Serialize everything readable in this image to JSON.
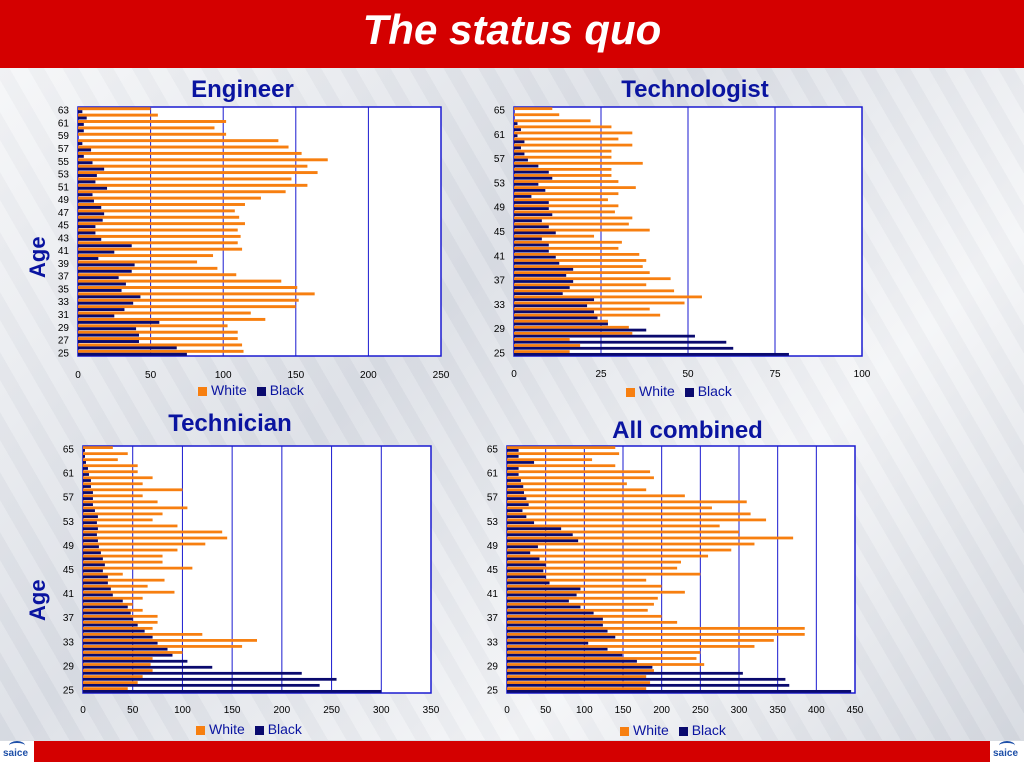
{
  "slide": {
    "title": "The status quo",
    "axis_label": "Age"
  },
  "colors": {
    "white": "#f77f10",
    "black": "#0a0a6e",
    "grid": "#1a1ad0",
    "text": "#0a14a0"
  },
  "chart_data": [
    {
      "type": "bar",
      "title": "Engineer",
      "ages": [
        25,
        26,
        27,
        28,
        29,
        30,
        31,
        32,
        33,
        34,
        35,
        36,
        37,
        38,
        39,
        40,
        41,
        42,
        43,
        44,
        45,
        46,
        47,
        48,
        49,
        50,
        51,
        52,
        53,
        54,
        55,
        56,
        57,
        58,
        59,
        60,
        61,
        62,
        63
      ],
      "age_tick_labels": [
        "25",
        "27",
        "29",
        "31",
        "33",
        "35",
        "37",
        "39",
        "41",
        "43",
        "45",
        "47",
        "49",
        "51",
        "53",
        "55",
        "57",
        "59",
        "61",
        "63"
      ],
      "series": [
        {
          "name": "White",
          "values": [
            114,
            113,
            110,
            110,
            103,
            129,
            119,
            150,
            152,
            163,
            151,
            140,
            109,
            96,
            82,
            93,
            113,
            110,
            112,
            110,
            115,
            111,
            108,
            115,
            126,
            143,
            158,
            147,
            165,
            158,
            172,
            154,
            145,
            138,
            102,
            94,
            102,
            55,
            50
          ]
        },
        {
          "name": "Black",
          "values": [
            75,
            68,
            42,
            42,
            40,
            56,
            25,
            32,
            38,
            43,
            30,
            33,
            28,
            37,
            39,
            14,
            25,
            37,
            16,
            12,
            12,
            17,
            18,
            16,
            11,
            10,
            20,
            12,
            13,
            18,
            10,
            4,
            9,
            3,
            0,
            4,
            4,
            6,
            3
          ]
        }
      ],
      "xlim": [
        0,
        250
      ],
      "xticks": [
        0,
        50,
        100,
        150,
        200,
        250
      ],
      "legend": "bottom"
    },
    {
      "type": "bar",
      "title": "Technologist",
      "ages": [
        25,
        26,
        27,
        28,
        29,
        30,
        31,
        32,
        33,
        34,
        35,
        36,
        37,
        38,
        39,
        40,
        41,
        42,
        43,
        44,
        45,
        46,
        47,
        48,
        49,
        50,
        51,
        52,
        53,
        54,
        55,
        56,
        57,
        58,
        59,
        60,
        61,
        62,
        63,
        64,
        65
      ],
      "age_tick_labels": [
        "25",
        "29",
        "33",
        "37",
        "41",
        "45",
        "49",
        "53",
        "57",
        "61",
        "65"
      ],
      "series": [
        {
          "name": "White",
          "values": [
            16,
            19,
            16,
            34,
            33,
            27,
            42,
            39,
            49,
            54,
            46,
            38,
            45,
            39,
            37,
            38,
            36,
            30,
            31,
            23,
            39,
            33,
            34,
            29,
            30,
            27,
            30,
            35,
            30,
            28,
            28,
            37,
            28,
            28,
            34,
            30,
            34,
            28,
            22,
            13,
            11
          ]
        },
        {
          "name": "Black",
          "values": [
            79,
            63,
            61,
            52,
            38,
            27,
            24,
            23,
            21,
            23,
            14,
            16,
            17,
            15,
            17,
            13,
            12,
            10,
            10,
            8,
            12,
            10,
            8,
            11,
            10,
            10,
            5,
            9,
            7,
            11,
            10,
            7,
            4,
            3,
            2,
            3,
            1,
            2,
            1,
            0,
            0
          ]
        }
      ],
      "xlim": [
        0,
        100
      ],
      "xticks": [
        0,
        25,
        50,
        75,
        100
      ],
      "legend": "bottom"
    },
    {
      "type": "bar",
      "title": "Technician",
      "ages": [
        25,
        26,
        27,
        28,
        29,
        30,
        31,
        32,
        33,
        34,
        35,
        36,
        37,
        38,
        39,
        40,
        41,
        42,
        43,
        44,
        45,
        46,
        47,
        48,
        49,
        50,
        51,
        52,
        53,
        54,
        55,
        56,
        57,
        58,
        59,
        60,
        61,
        62,
        63,
        64,
        65
      ],
      "age_tick_labels": [
        "25",
        "29",
        "33",
        "37",
        "41",
        "45",
        "49",
        "53",
        "57",
        "61",
        "65"
      ],
      "series": [
        {
          "name": "White",
          "values": [
            45,
            55,
            60,
            70,
            68,
            70,
            100,
            160,
            175,
            120,
            70,
            75,
            75,
            60,
            50,
            60,
            92,
            65,
            82,
            40,
            110,
            80,
            80,
            95,
            123,
            145,
            140,
            95,
            70,
            80,
            105,
            75,
            60,
            100,
            60,
            70,
            55,
            55,
            35,
            45,
            30
          ]
        },
        {
          "name": "Black",
          "values": [
            300,
            238,
            255,
            220,
            130,
            105,
            90,
            85,
            75,
            70,
            62,
            55,
            50,
            48,
            45,
            40,
            30,
            28,
            25,
            25,
            20,
            22,
            20,
            18,
            16,
            15,
            14,
            15,
            14,
            15,
            12,
            10,
            10,
            10,
            8,
            8,
            6,
            5,
            3,
            2,
            2
          ]
        }
      ],
      "xlim": [
        0,
        350
      ],
      "xticks": [
        0,
        50,
        100,
        150,
        200,
        250,
        300,
        350
      ],
      "legend": "bottom"
    },
    {
      "type": "bar",
      "title": "All combined",
      "ages": [
        25,
        26,
        27,
        28,
        29,
        30,
        31,
        32,
        33,
        34,
        35,
        36,
        37,
        38,
        39,
        40,
        41,
        42,
        43,
        44,
        45,
        46,
        47,
        48,
        49,
        50,
        51,
        52,
        53,
        54,
        55,
        56,
        57,
        58,
        59,
        60,
        61,
        62,
        63,
        64,
        65
      ],
      "age_tick_labels": [
        "25",
        "29",
        "33",
        "37",
        "41",
        "45",
        "49",
        "53",
        "57",
        "61",
        "65"
      ],
      "series": [
        {
          "name": "White",
          "values": [
            180,
            185,
            180,
            190,
            255,
            245,
            250,
            320,
            345,
            385,
            385,
            220,
            200,
            182,
            190,
            195,
            230,
            200,
            180,
            250,
            220,
            225,
            260,
            290,
            320,
            370,
            300,
            275,
            335,
            315,
            265,
            310,
            230,
            180,
            155,
            190,
            185,
            140,
            110,
            145,
            140
          ]
        },
        {
          "name": "Black",
          "values": [
            445,
            365,
            360,
            305,
            188,
            168,
            149,
            130,
            105,
            140,
            130,
            124,
            124,
            112,
            95,
            80,
            90,
            95,
            55,
            50,
            47,
            50,
            42,
            30,
            40,
            92,
            85,
            70,
            35,
            25,
            20,
            28,
            25,
            22,
            21,
            18,
            15,
            15,
            35,
            15,
            15
          ]
        }
      ],
      "xlim": [
        0,
        450
      ],
      "xticks": [
        0,
        50,
        100,
        150,
        200,
        250,
        300,
        350,
        400,
        450
      ],
      "legend": "bottom"
    }
  ]
}
